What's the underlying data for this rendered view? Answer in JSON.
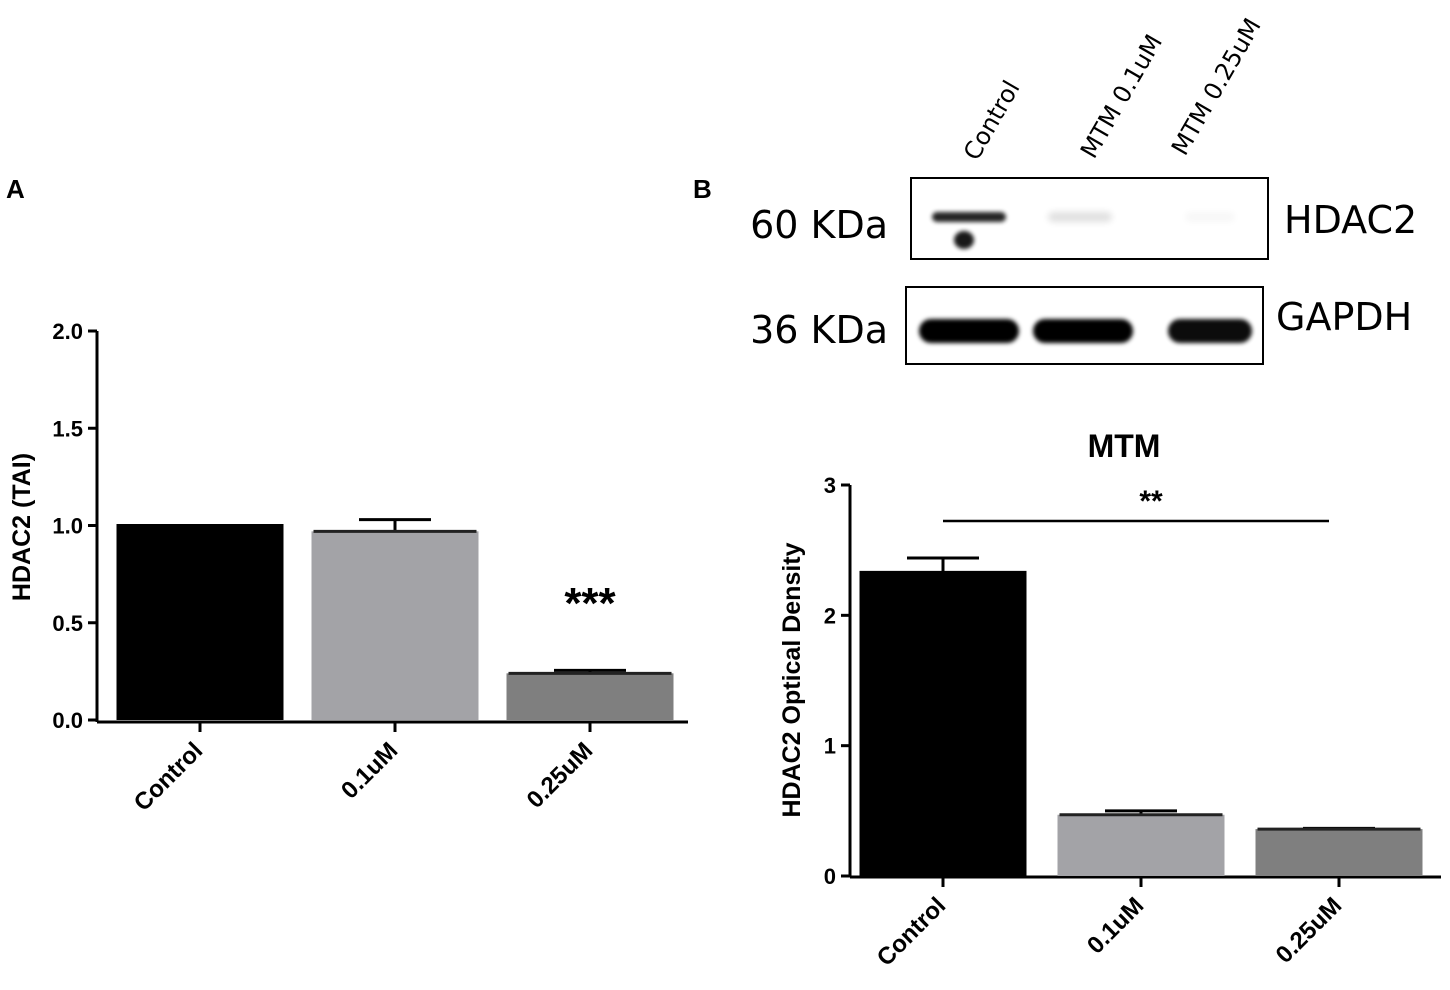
{
  "panels": {
    "a": "A",
    "b": "B"
  },
  "colors": {
    "control": "#000000",
    "dose_low": "#a3a3a7",
    "dose_high": "#7f7f7f"
  },
  "blot": {
    "lanes": [
      "Control",
      "MTM 0.1uM",
      "MTM 0.25uM"
    ],
    "rows": [
      {
        "mw": "60 KDa",
        "protein": "HDAC2",
        "band_intensity": [
          0.85,
          0.12,
          0.03
        ]
      },
      {
        "mw": "36 KDa",
        "protein": "GAPDH",
        "band_intensity": [
          1.0,
          1.0,
          0.95
        ]
      }
    ]
  },
  "chart_data": [
    {
      "panel": "A",
      "type": "bar",
      "title": "",
      "xlabel": "",
      "ylabel": "HDAC2 (TAI)",
      "categories": [
        "Control",
        "0.1uM",
        "0.25uM"
      ],
      "values": [
        1.0,
        0.97,
        0.24
      ],
      "errors": [
        0.0,
        0.06,
        0.015
      ],
      "ylim": [
        0,
        2.0
      ],
      "yticks": [
        "0.0",
        "0.5",
        "1.0",
        "1.5",
        "2.0"
      ],
      "annotations": [
        {
          "category": "0.25uM",
          "text": "***"
        }
      ],
      "grid": false
    },
    {
      "panel": "B",
      "type": "bar",
      "title": "MTM",
      "xlabel": "",
      "ylabel": "HDAC2 Optical Density",
      "categories": [
        "Control",
        "0.1uM",
        "0.25uM"
      ],
      "values": [
        2.33,
        0.47,
        0.36
      ],
      "errors": [
        0.11,
        0.03,
        0.005
      ],
      "ylim": [
        0,
        3
      ],
      "yticks": [
        "0",
        "1",
        "2",
        "3"
      ],
      "annotations": [
        {
          "from": "Control",
          "to": "0.25uM",
          "text": "**"
        }
      ],
      "grid": false
    }
  ]
}
